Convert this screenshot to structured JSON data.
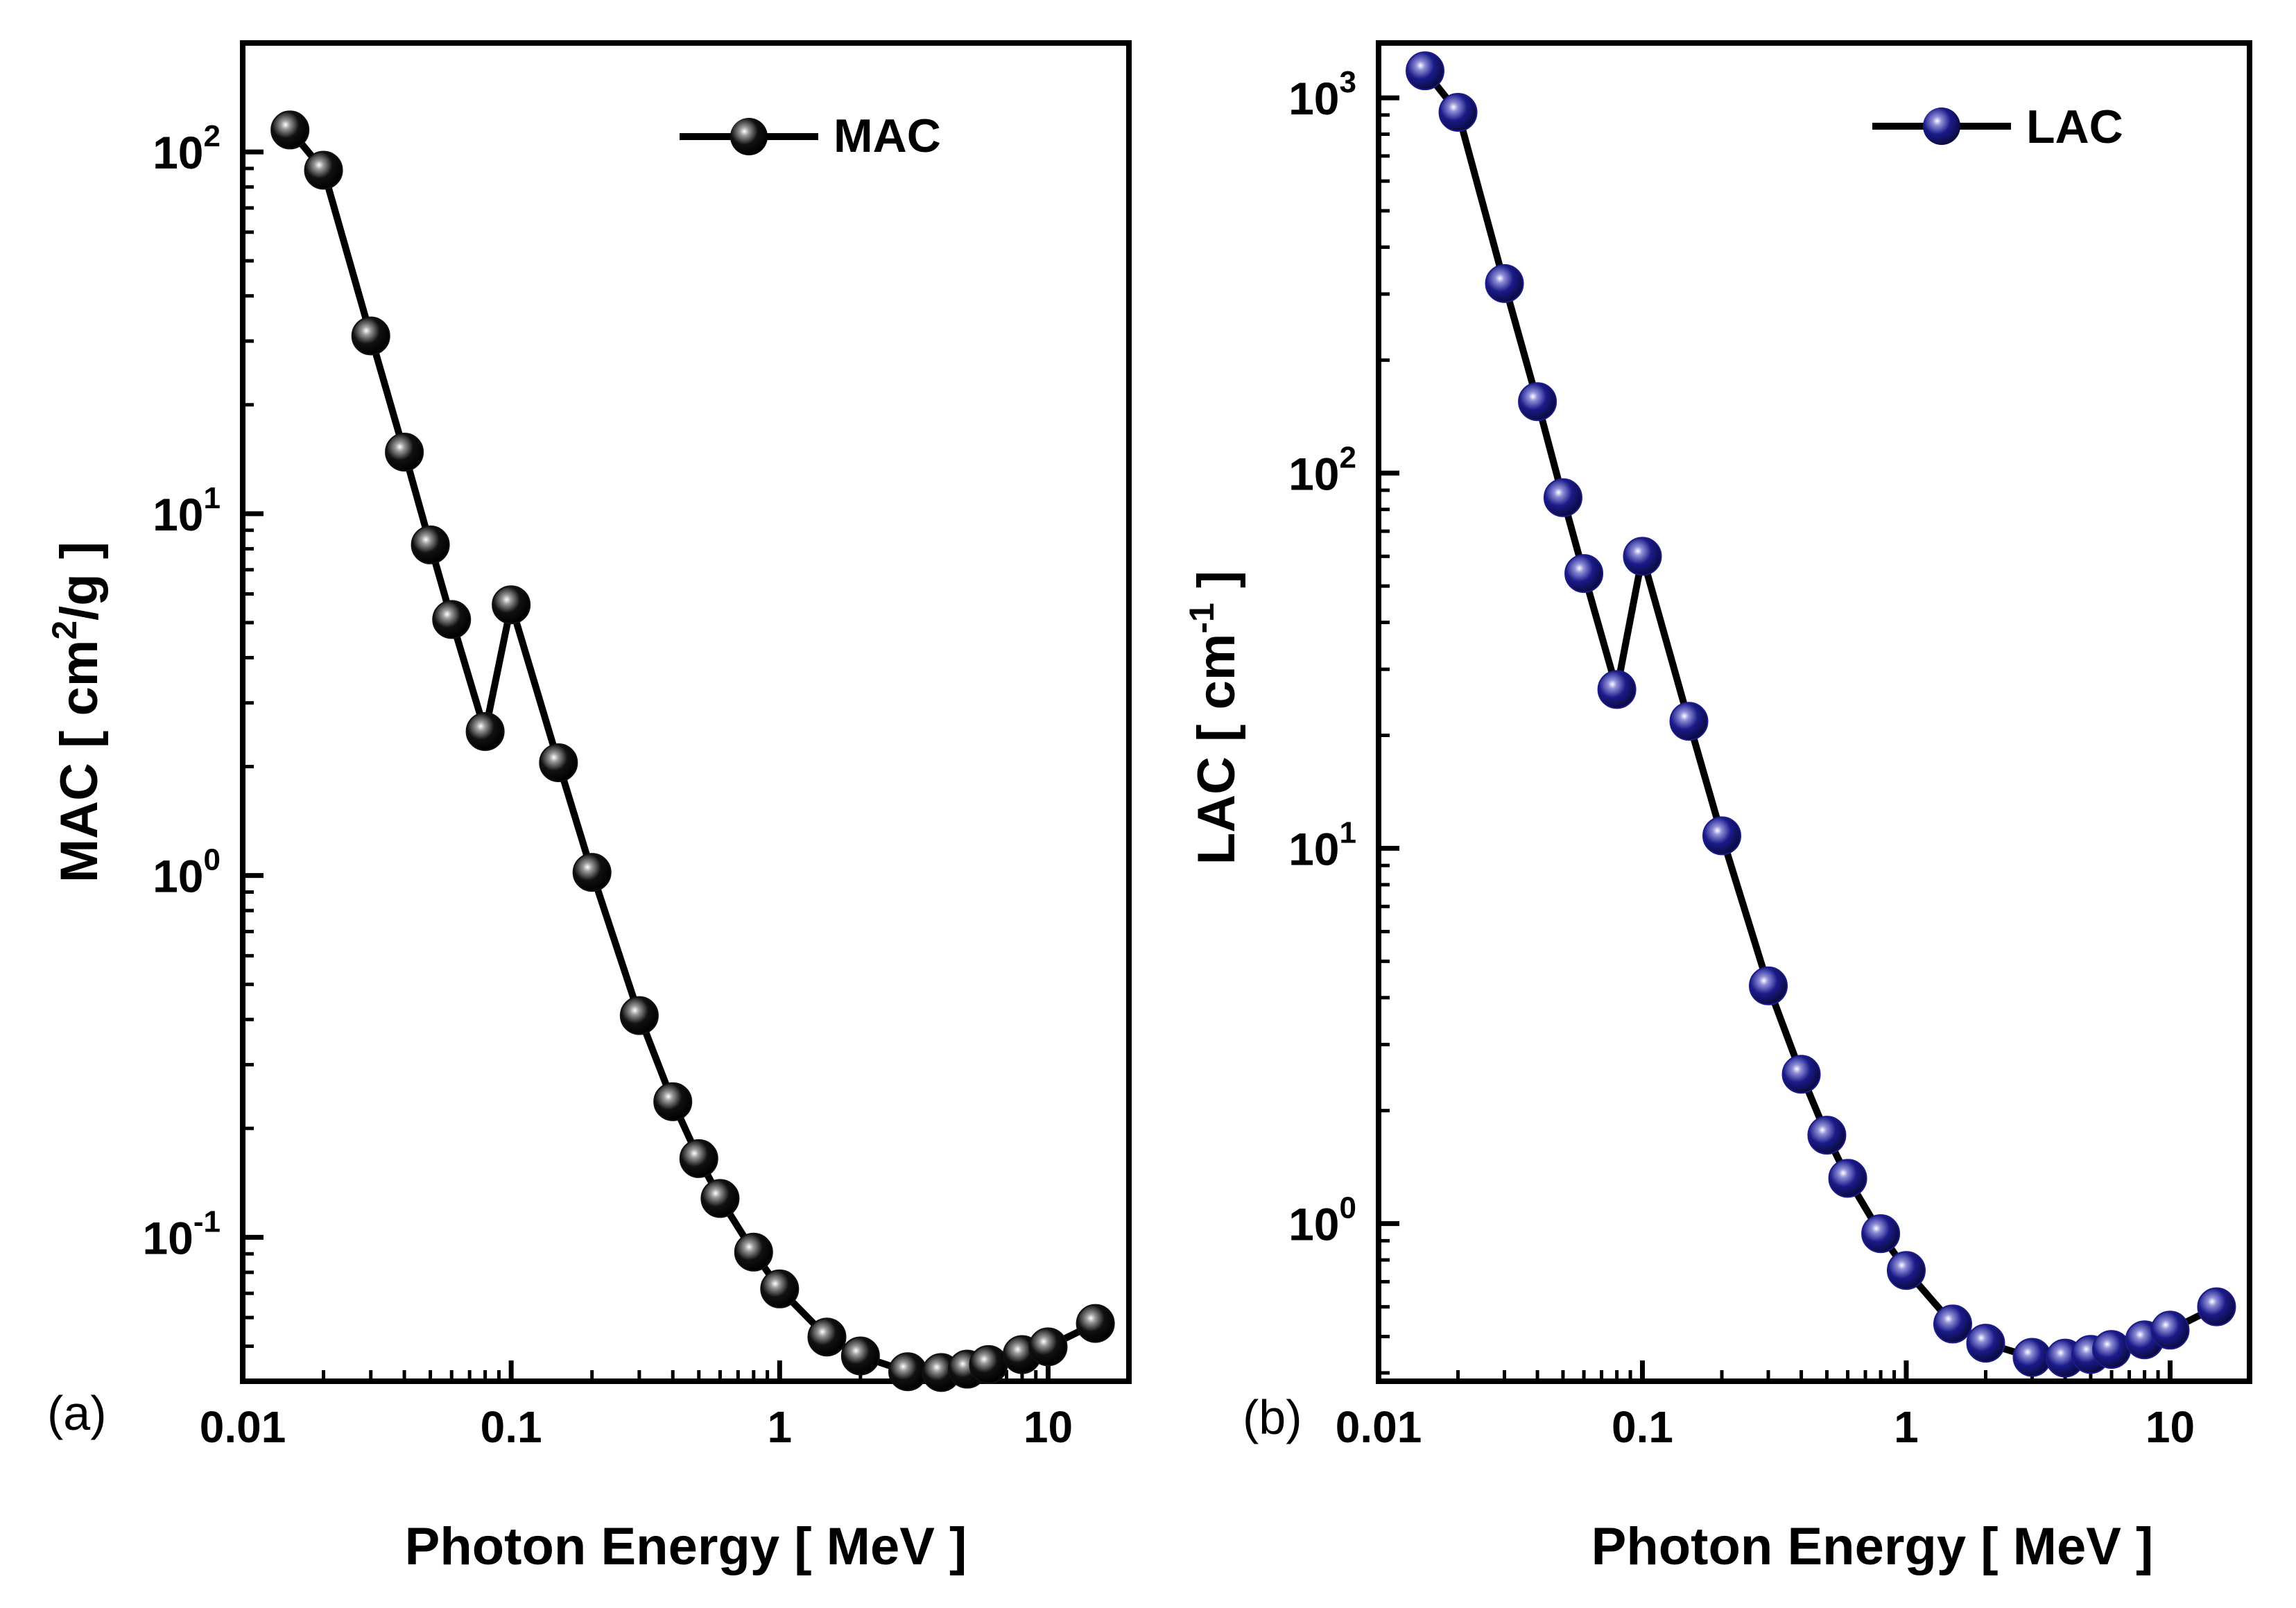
{
  "chart_data": [
    {
      "type": "line",
      "panel_label": "(a)",
      "xlabel": "Photon Energy [ MeV ]",
      "ylabel_prefix": "MAC [ cm",
      "ylabel_sup": "2",
      "ylabel_suffix": "/g ]",
      "xscale": "log",
      "yscale": "log",
      "xlim": [
        0.01,
        20
      ],
      "ylim": [
        0.04,
        200
      ],
      "x_ticks": [
        {
          "value": 0.01,
          "label": "0.01"
        },
        {
          "value": 0.1,
          "label": "0.1"
        },
        {
          "value": 1,
          "label": "1"
        },
        {
          "value": 10,
          "label": "10"
        }
      ],
      "y_ticks": [
        {
          "value": 0.1,
          "base": "10",
          "exp": "-1"
        },
        {
          "value": 1,
          "base": "10",
          "exp": "0"
        },
        {
          "value": 10,
          "base": "10",
          "exp": "1"
        },
        {
          "value": 100,
          "base": "10",
          "exp": "2"
        }
      ],
      "legend": "top-right",
      "series": [
        {
          "name": "MAC",
          "color": "#000000",
          "marker_color": "#111111",
          "x": [
            0.015,
            0.02,
            0.03,
            0.04,
            0.05,
            0.06,
            0.08,
            0.1,
            0.15,
            0.2,
            0.3,
            0.4,
            0.5,
            0.6,
            0.8,
            1,
            1.5,
            2,
            3,
            4,
            5,
            6,
            8,
            10,
            15
          ],
          "y": [
            115,
            89,
            31,
            14.8,
            8.2,
            5.1,
            2.5,
            5.6,
            2.05,
            1.02,
            0.41,
            0.237,
            0.165,
            0.128,
            0.091,
            0.072,
            0.053,
            0.047,
            0.0425,
            0.0423,
            0.0432,
            0.0445,
            0.0474,
            0.0498,
            0.0578
          ]
        }
      ]
    },
    {
      "type": "line",
      "panel_label": "(b)",
      "xlabel": "Photon Energy [ MeV ]",
      "ylabel_prefix": "LAC [ cm",
      "ylabel_sup": "-1",
      "ylabel_suffix": " ]",
      "xscale": "log",
      "yscale": "log",
      "xlim": [
        0.01,
        20
      ],
      "ylim": [
        0.38,
        1400
      ],
      "x_ticks": [
        {
          "value": 0.01,
          "label": "0.01"
        },
        {
          "value": 0.1,
          "label": "0.1"
        },
        {
          "value": 1,
          "label": "1"
        },
        {
          "value": 10,
          "label": "10"
        }
      ],
      "y_ticks": [
        {
          "value": 1,
          "base": "10",
          "exp": "0"
        },
        {
          "value": 10,
          "base": "10",
          "exp": "1"
        },
        {
          "value": 100,
          "base": "10",
          "exp": "2"
        },
        {
          "value": 1000,
          "base": "10",
          "exp": "3"
        }
      ],
      "legend": "top-right",
      "series": [
        {
          "name": "LAC",
          "color": "#000000",
          "marker_color": "#1b1b8a",
          "x": [
            0.015,
            0.02,
            0.03,
            0.04,
            0.05,
            0.06,
            0.08,
            0.1,
            0.15,
            0.2,
            0.3,
            0.4,
            0.5,
            0.6,
            0.8,
            1,
            1.5,
            2,
            3,
            4,
            5,
            6,
            8,
            10,
            15
          ],
          "y": [
            1180,
            915,
            320,
            155,
            86,
            54,
            26.5,
            60,
            21.8,
            10.8,
            4.3,
            2.5,
            1.72,
            1.32,
            0.94,
            0.75,
            0.54,
            0.48,
            0.44,
            0.438,
            0.448,
            0.462,
            0.49,
            0.52,
            0.6
          ]
        }
      ]
    }
  ]
}
